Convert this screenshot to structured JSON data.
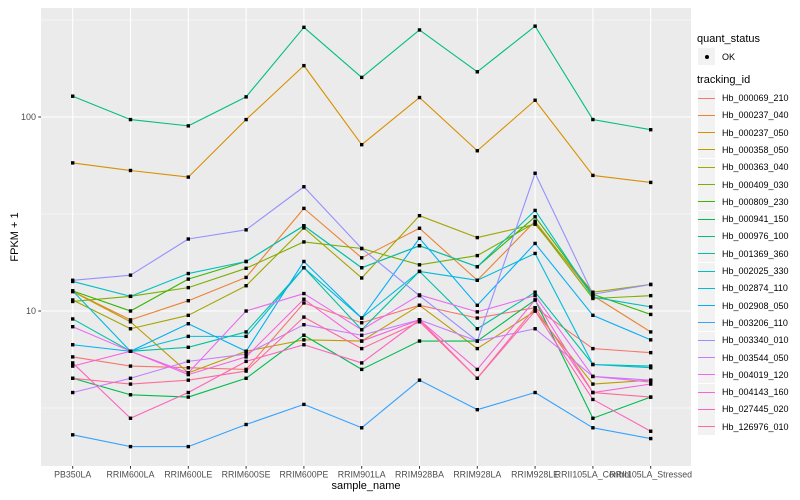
{
  "chart_data": {
    "type": "line",
    "title": "",
    "xlabel": "sample_name",
    "ylabel": "FPKM + 1",
    "yscale": "log10",
    "ylim": [
      1.55,
      360
    ],
    "yticks": [
      10,
      100
    ],
    "grid": "on",
    "legend_position": "right",
    "panel_bg": "#EBEBEB",
    "grid_color": "#FFFFFF",
    "tick_color": "#333333",
    "tick_label_color": "#4D4D4D",
    "point_color": "#000000",
    "legend": {
      "quant_status_title": "quant_status",
      "quant_status_value": "OK",
      "tracking_id_title": "tracking_id"
    },
    "x_categories": [
      "PB350LA",
      "RRIM600LA",
      "RRIM600LE",
      "RRIM600SE",
      "RRIM600PE",
      "RRIM901LA",
      "RRIM928BA",
      "RRIM928LA",
      "RRIM928LE",
      "RRII105LA_Control",
      "RRII105LA_Stressed"
    ],
    "series": [
      {
        "name": "Hb_000069_210",
        "color": "#F8766D",
        "values": [
          5.8,
          5.2,
          5.1,
          5.0,
          11.0,
          8.7,
          10.7,
          9.2,
          10.4,
          6.4,
          6.1
        ]
      },
      {
        "name": "Hb_000237_040",
        "color": "#EA8331",
        "values": [
          12.6,
          9.0,
          11.3,
          14.9,
          33.8,
          18.8,
          26.7,
          14.4,
          29.0,
          12.0,
          7.8
        ]
      },
      {
        "name": "Hb_000237_050",
        "color": "#D89000",
        "values": [
          58,
          53,
          49,
          97,
          184,
          72,
          126,
          67,
          122,
          50,
          46
        ]
      },
      {
        "name": "Hb_000358_050",
        "color": "#C09B00",
        "values": [
          12.6,
          8.8,
          4.8,
          6.2,
          7.1,
          7.0,
          10.7,
          6.4,
          10.0,
          4.2,
          4.4
        ]
      },
      {
        "name": "Hb_000363_040",
        "color": "#A3A500",
        "values": [
          11.4,
          8.1,
          9.5,
          13.5,
          26.8,
          14.8,
          31.0,
          23.9,
          28.0,
          12.5,
          13.7
        ]
      },
      {
        "name": "Hb_000409_030",
        "color": "#7CAE00",
        "values": [
          11.2,
          11.9,
          13.2,
          16.6,
          22.7,
          21.0,
          17.3,
          19.3,
          28.5,
          11.6,
          12.0
        ]
      },
      {
        "name": "Hb_000809_230",
        "color": "#39B600",
        "values": [
          12.7,
          10.0,
          14.6,
          18.0,
          27.5,
          16.7,
          21.7,
          16.9,
          30.6,
          12.2,
          9.6
        ]
      },
      {
        "name": "Hb_000941_150",
        "color": "#00BB4E",
        "values": [
          4.5,
          3.7,
          3.6,
          4.5,
          7.5,
          5.0,
          7.0,
          7.0,
          11.4,
          2.8,
          3.6
        ]
      },
      {
        "name": "Hb_000976_100",
        "color": "#00BF7D",
        "values": [
          128,
          97,
          90,
          127,
          290,
          160,
          281,
          171,
          294,
          97,
          86
        ]
      },
      {
        "name": "Hb_001369_360",
        "color": "#00C1A3",
        "values": [
          9.1,
          6.2,
          6.5,
          7.8,
          16.7,
          8.0,
          16.0,
          8.1,
          12.5,
          5.3,
          5.2
        ]
      },
      {
        "name": "Hb_002025_330",
        "color": "#00BFC4",
        "values": [
          14.2,
          11.9,
          15.6,
          18.0,
          27.5,
          16.7,
          21.7,
          16.9,
          33.0,
          11.8,
          10.5
        ]
      },
      {
        "name": "Hb_002874_110",
        "color": "#00BBDB",
        "values": [
          12.7,
          6.2,
          7.4,
          7.4,
          16.7,
          9.2,
          16.0,
          14.4,
          19.8,
          5.3,
          5.1
        ]
      },
      {
        "name": "Hb_002908_050",
        "color": "#00B0F6",
        "values": [
          6.7,
          6.2,
          8.6,
          6.2,
          18.0,
          9.2,
          23.7,
          10.7,
          22.3,
          9.5,
          7.1
        ]
      },
      {
        "name": "Hb_003206_110",
        "color": "#35A2FF",
        "values": [
          2.3,
          2.0,
          2.0,
          2.6,
          3.3,
          2.5,
          4.4,
          3.1,
          3.8,
          2.5,
          2.2
        ]
      },
      {
        "name": "Hb_003340_010",
        "color": "#9590FF",
        "values": [
          14.4,
          15.3,
          23.5,
          26.2,
          43.7,
          21.0,
          12.0,
          7.0,
          51.3,
          12.2,
          13.7
        ]
      },
      {
        "name": "Hb_003544_050",
        "color": "#C77CFF",
        "values": [
          3.8,
          4.5,
          5.5,
          6.0,
          8.5,
          7.5,
          9.0,
          7.0,
          8.1,
          4.6,
          4.4
        ]
      },
      {
        "name": "Hb_004019_120",
        "color": "#E76BF3",
        "values": [
          8.3,
          6.2,
          4.8,
          10.0,
          12.3,
          8.0,
          12.1,
          9.9,
          12.0,
          4.6,
          4.3
        ]
      },
      {
        "name": "Hb_004143_160",
        "color": "#FA62DB",
        "values": [
          5.2,
          6.2,
          4.7,
          5.8,
          11.5,
          7.0,
          9.0,
          5.0,
          11.4,
          3.8,
          4.2
        ]
      },
      {
        "name": "Hb_027445_020",
        "color": "#FF62BC",
        "values": [
          5.4,
          2.8,
          3.8,
          5.5,
          6.7,
          5.4,
          9.0,
          4.5,
          10.0,
          3.5,
          2.4
        ]
      },
      {
        "name": "Hb_126976_010",
        "color": "#FF6A98",
        "values": [
          4.5,
          4.2,
          4.4,
          4.9,
          9.3,
          6.4,
          8.8,
          4.5,
          10.4,
          3.8,
          3.6
        ]
      }
    ]
  }
}
